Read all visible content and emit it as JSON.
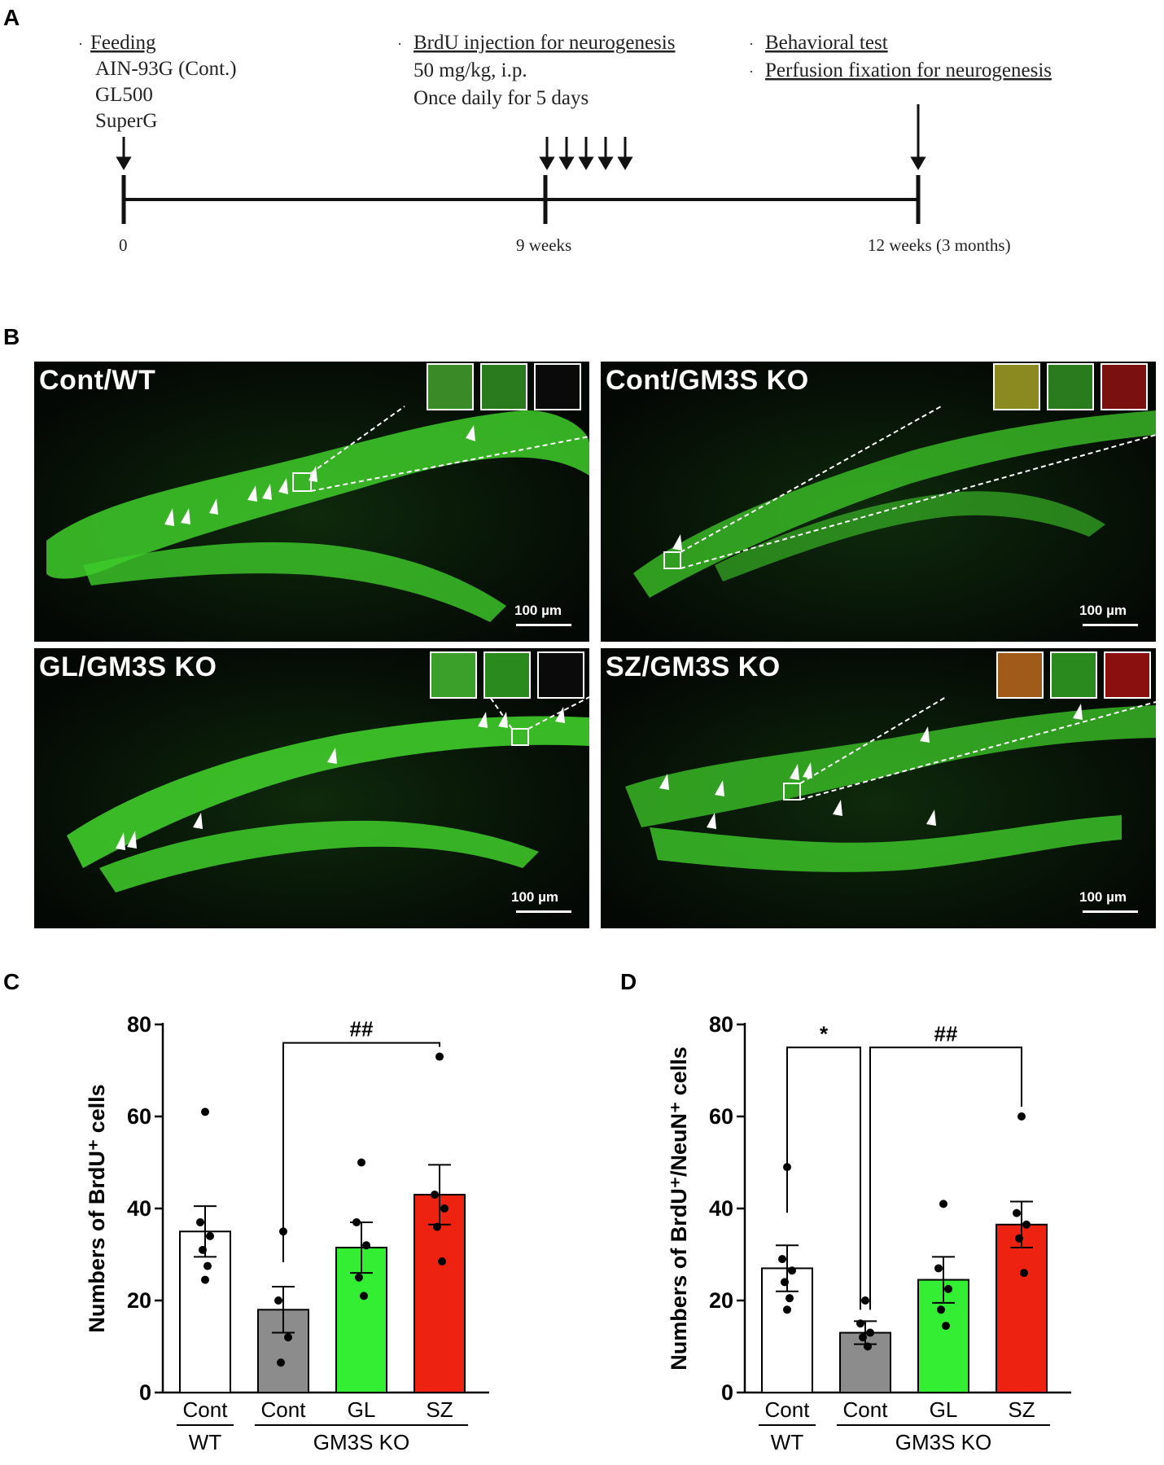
{
  "panels": {
    "a": "A",
    "b": "B",
    "c": "C",
    "d": "D"
  },
  "timeline": {
    "feeding": {
      "heading": "Feeding",
      "items": [
        "AIN-93G (Cont.)",
        "GL500",
        "SuperG"
      ]
    },
    "brdu": {
      "heading": "BrdU injection for neurogenesis",
      "dose": "50 mg/kg, i.p.",
      "schedule": "Once daily for 5 days"
    },
    "behavior": {
      "heading1": "Behavioral test",
      "heading2": "Perfusion fixation for neurogenesis"
    },
    "ticks": [
      "0",
      "9 weeks",
      "12 weeks (3 months)"
    ]
  },
  "micrographs": [
    {
      "label": "Cont/WT",
      "scale": "100 µm"
    },
    {
      "label": "Cont/GM3S KO",
      "scale": "100 µm"
    },
    {
      "label": "GL/GM3S KO",
      "scale": "100 µm"
    },
    {
      "label": "SZ/GM3S KO",
      "scale": "100 µm"
    }
  ],
  "colors": {
    "wt_bar": "#ffffff",
    "cont_ko_bar": "#8c8c8c",
    "gl_bar": "#33ee33",
    "sz_bar": "#ee2211",
    "tissue_green": "#3fcc2a",
    "brdu_red": "#ff2a1a"
  },
  "chart_data": [
    {
      "type": "bar",
      "ylabel": "Numbers of BrdU⁺ cells",
      "ylim": [
        0,
        80
      ],
      "yticks": [
        "0",
        "20",
        "40",
        "60",
        "80"
      ],
      "categories": [
        "Cont",
        "Cont",
        "GL",
        "SZ"
      ],
      "groups": [
        {
          "label": "WT",
          "span": [
            0,
            0
          ]
        },
        {
          "label": "GM3S KO",
          "span": [
            1,
            3
          ]
        }
      ],
      "values": [
        35,
        18,
        31.5,
        43
      ],
      "errors": [
        5.5,
        5,
        5.5,
        6.5
      ],
      "points": [
        [
          61,
          37,
          34,
          31,
          27.5,
          24.5
        ],
        [
          35,
          20,
          12,
          6.5
        ],
        [
          50,
          37,
          32,
          25,
          21
        ],
        [
          73,
          43,
          40,
          36,
          28.5
        ]
      ],
      "significance": [
        {
          "label": "##",
          "from": 1,
          "to": 3,
          "y": 76
        }
      ]
    },
    {
      "type": "bar",
      "ylabel": "Numbers of BrdU⁺/NeuN⁺ cells",
      "ylim": [
        0,
        80
      ],
      "yticks": [
        "0",
        "20",
        "40",
        "60",
        "80"
      ],
      "categories": [
        "Cont",
        "Cont",
        "GL",
        "SZ"
      ],
      "groups": [
        {
          "label": "WT",
          "span": [
            0,
            0
          ]
        },
        {
          "label": "GM3S KO",
          "span": [
            1,
            3
          ]
        }
      ],
      "values": [
        27,
        13,
        24.5,
        36.5
      ],
      "errors": [
        5,
        2.5,
        5,
        5
      ],
      "points": [
        [
          49,
          29,
          26.5,
          24,
          20.5,
          18
        ],
        [
          20,
          15,
          13,
          12,
          10
        ],
        [
          41,
          27,
          22.5,
          18,
          14.5
        ],
        [
          60,
          39,
          36.5,
          33.5,
          26
        ]
      ],
      "significance": [
        {
          "label": "*",
          "from": 0,
          "to": 1,
          "y": 75
        },
        {
          "label": "##",
          "from": 1,
          "to": 3,
          "y": 75
        }
      ]
    }
  ]
}
